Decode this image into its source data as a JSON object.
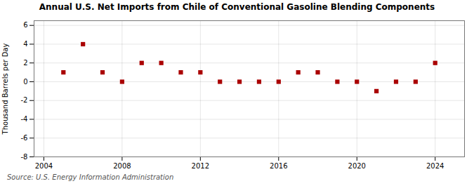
{
  "chart_data": {
    "type": "scatter",
    "title": "Annual U.S. Net Imports from Chile of Conventional Gasoline Blending Components",
    "ylabel": "Thousand Barrels per Day",
    "source": "Source: U.S. Energy Information Administration",
    "x": [
      2005,
      2006,
      2007,
      2008,
      2009,
      2010,
      2011,
      2012,
      2013,
      2014,
      2015,
      2016,
      2017,
      2018,
      2019,
      2020,
      2021,
      2022,
      2023,
      2024
    ],
    "values": [
      1,
      4,
      1,
      0,
      2,
      2,
      1,
      1,
      0,
      0,
      0,
      0,
      1,
      1,
      0,
      0,
      -1,
      0,
      0,
      2
    ],
    "xlim": [
      2003.5,
      2025.5
    ],
    "ylim": [
      -8,
      6.5
    ],
    "xticks": [
      2004,
      2008,
      2012,
      2016,
      2020,
      2024
    ],
    "yticks": [
      -8,
      -6,
      -4,
      -2,
      0,
      2,
      4,
      6
    ],
    "color": "#aa0000",
    "marker": "square",
    "grid": true
  }
}
